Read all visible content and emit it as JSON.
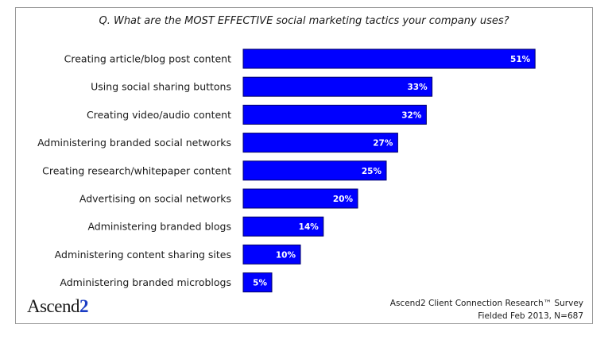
{
  "title": "Q. What are the MOST EFFECTIVE social marketing tactics your company uses?",
  "logo": {
    "text": "Ascend",
    "suffix": "2"
  },
  "source": {
    "line1": "Ascend2 Client Connection Research™ Survey",
    "line2": "Fielded Feb 2013, N=687"
  },
  "colors": {
    "bar": "#0000ff",
    "bar_edge": "#00006a"
  },
  "chart_data": {
    "type": "bar",
    "orientation": "horizontal",
    "title": "Q. What are the MOST EFFECTIVE social marketing tactics your company uses?",
    "categories": [
      "Creating article/blog post content",
      "Using social sharing buttons",
      "Creating video/audio content",
      "Administering branded social networks",
      "Creating research/whitepaper content",
      "Advertising on social networks",
      "Administering branded blogs",
      "Administering content sharing sites",
      "Administering branded microblogs"
    ],
    "values": [
      51,
      33,
      32,
      27,
      25,
      20,
      14,
      10,
      5
    ],
    "value_labels": [
      "51%",
      "33%",
      "32%",
      "27%",
      "25%",
      "20%",
      "14%",
      "10%",
      "5%"
    ],
    "xlim": [
      0,
      60
    ],
    "grid": false,
    "legend": "none"
  }
}
